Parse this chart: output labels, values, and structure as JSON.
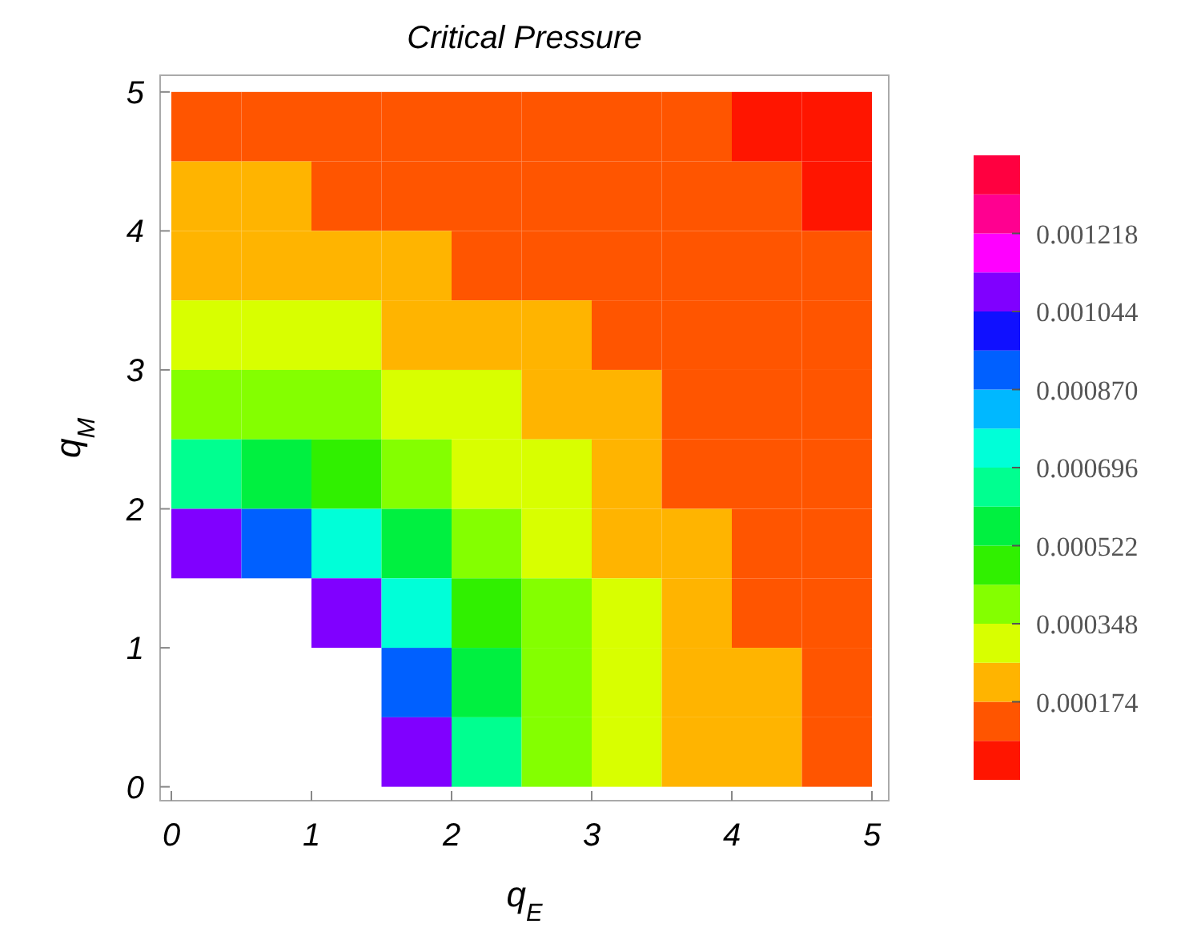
{
  "chart_data": {
    "type": "heatmap",
    "title": "Critical Pressure",
    "xlabel": "q$_{E}$",
    "ylabel": "q$_{M}$",
    "x": [
      0.25,
      0.75,
      1.25,
      1.75,
      2.25,
      2.75,
      3.25,
      3.75,
      4.25,
      4.75
    ],
    "y": [
      4.75,
      4.25,
      3.75,
      3.25,
      2.75,
      2.25,
      1.75,
      1.25,
      0.75,
      0.25
    ],
    "cells": [
      [
        0.0001305,
        0.0001305,
        0.0001305,
        0.0001305,
        0.0001305,
        0.0001305,
        0.0001305,
        0.0001305,
        4.35e-05,
        4.35e-05
      ],
      [
        0.0002175,
        0.0002175,
        0.0001305,
        0.0001305,
        0.0001305,
        0.0001305,
        0.0001305,
        0.0001305,
        0.0001305,
        4.35e-05
      ],
      [
        0.0002175,
        0.0002175,
        0.0002175,
        0.0002175,
        0.0001305,
        0.0001305,
        0.0001305,
        0.0001305,
        0.0001305,
        0.0001305
      ],
      [
        0.0003045,
        0.0003045,
        0.0003045,
        0.0002175,
        0.0002175,
        0.0002175,
        0.0001305,
        0.0001305,
        0.0001305,
        0.0001305
      ],
      [
        0.0003915,
        0.0003915,
        0.0003915,
        0.0003045,
        0.0003045,
        0.0002175,
        0.0002175,
        0.0001305,
        0.0001305,
        0.0001305
      ],
      [
        0.0006525,
        0.0005655,
        0.0004785,
        0.0003915,
        0.0003045,
        0.0003045,
        0.0002175,
        0.0001305,
        0.0001305,
        0.0001305
      ],
      [
        0.0010875,
        0.0009135,
        0.0007395,
        0.0005655,
        0.0003915,
        0.0003045,
        0.0002175,
        0.0002175,
        0.0001305,
        0.0001305
      ],
      [
        null,
        null,
        0.0010875,
        0.0007395,
        0.0004785,
        0.0003915,
        0.0003045,
        0.0002175,
        0.0001305,
        0.0001305
      ],
      [
        null,
        null,
        null,
        0.0009135,
        0.0005655,
        0.0003915,
        0.0003045,
        0.0002175,
        0.0002175,
        0.0001305
      ],
      [
        null,
        null,
        null,
        0.0010875,
        0.0006525,
        0.0003915,
        0.0003045,
        0.0002175,
        0.0002175,
        0.0001305
      ]
    ],
    "colors": [
      "#ff1500",
      "#ff5500",
      "#ffb400",
      "#d8ff00",
      "#84ff00",
      "#30f000",
      "#00f040",
      "#00ff90",
      "#00ffd8",
      "#00b8ff",
      "#0060ff",
      "#1010ff",
      "#8000ff",
      "#ff00ff",
      "#ff0090",
      "#ff0040"
    ],
    "xlim": [
      -0.08,
      5.12
    ],
    "ylim": [
      -0.1,
      5.12
    ],
    "xticks": [
      0,
      1,
      2,
      3,
      4,
      5
    ],
    "yticks": [
      0,
      1,
      2,
      3,
      4,
      5
    ],
    "clim": [
      0,
      0.001392
    ],
    "cticks": [
      0.000174,
      0.000348,
      0.000522,
      0.000696,
      {
        "value": 0.00087,
        "label": "0.000870"
      },
      0.001044,
      0.001218
    ]
  }
}
